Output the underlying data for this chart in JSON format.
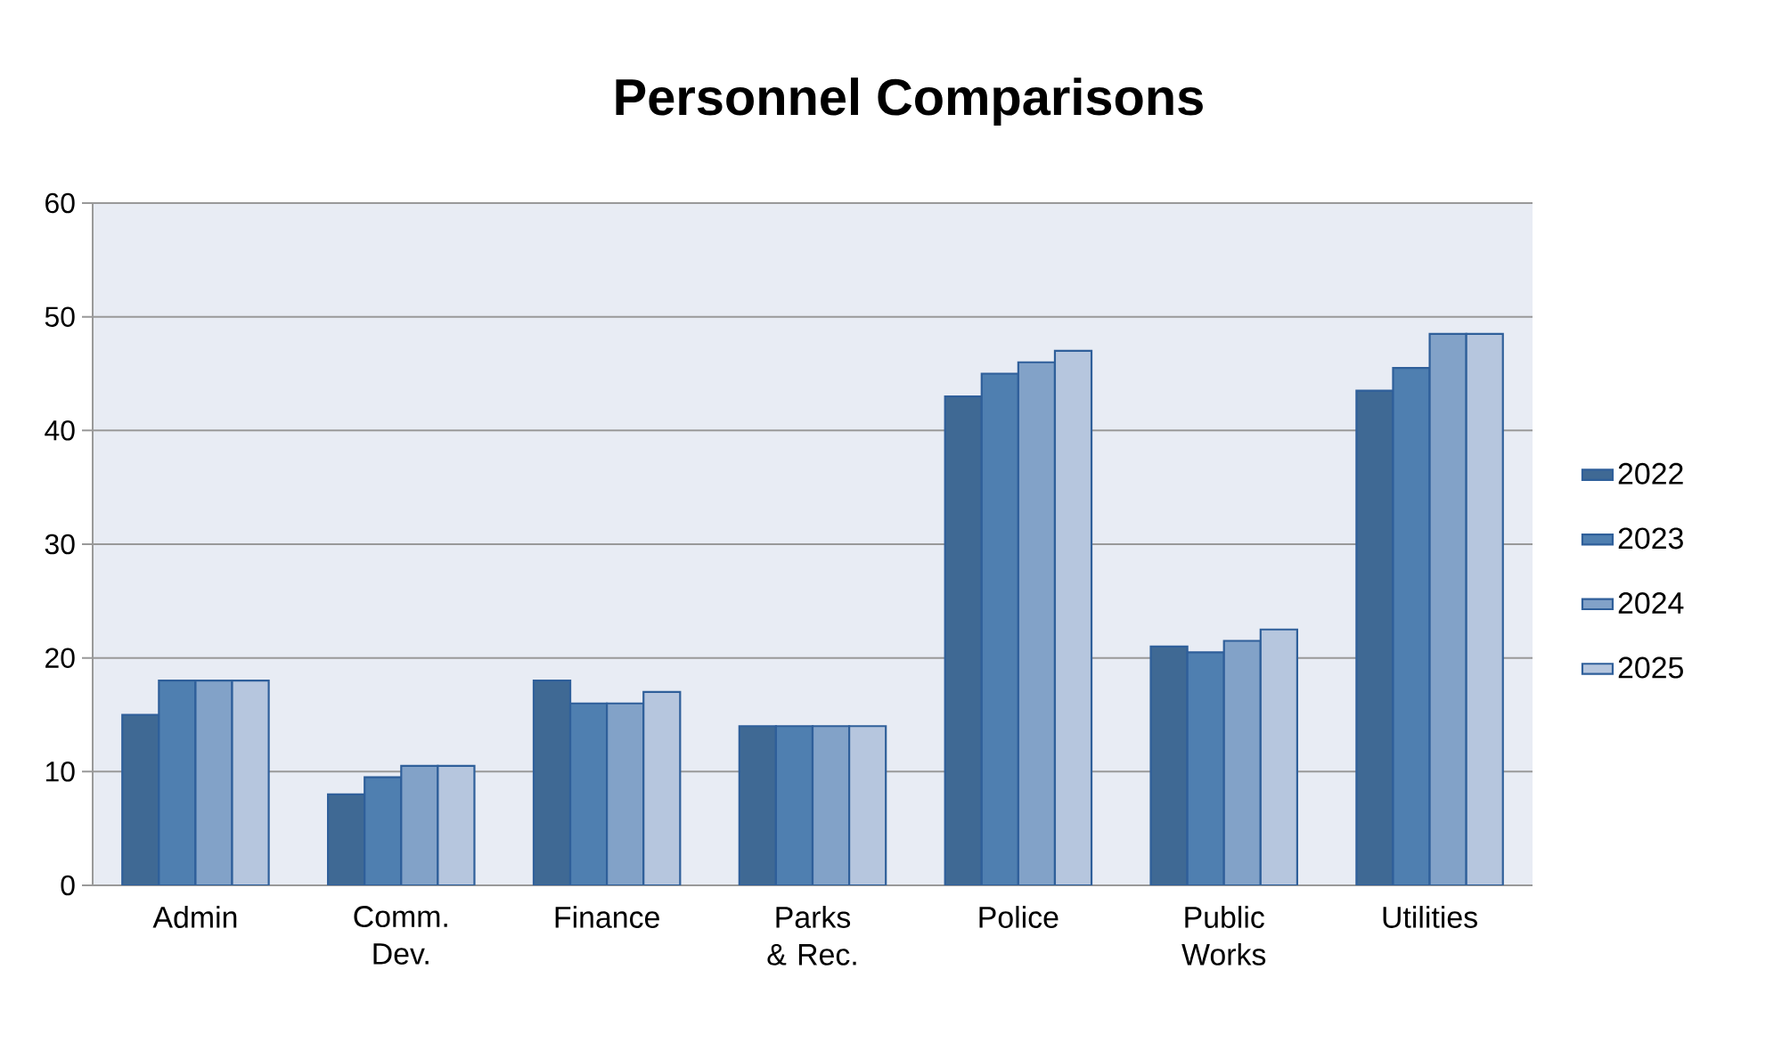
{
  "chart_data": {
    "type": "bar",
    "title": "Personnel Comparisons",
    "categories": [
      "Admin",
      "Comm. Dev.",
      "Finance",
      "Parks & Rec.",
      "Police",
      "Public Works",
      "Utilities"
    ],
    "series": [
      {
        "name": "2022",
        "color": "#3f6994",
        "values": [
          15,
          8,
          18,
          14,
          43,
          21,
          43.5
        ]
      },
      {
        "name": "2023",
        "color": "#4f7fb0",
        "values": [
          18,
          9.5,
          16,
          14,
          45,
          20.5,
          45.5
        ]
      },
      {
        "name": "2024",
        "color": "#82a2c8",
        "values": [
          18,
          10.5,
          16,
          14,
          46,
          21.5,
          48.5
        ]
      },
      {
        "name": "2025",
        "color": "#b6c6de",
        "values": [
          18,
          10.5,
          17,
          14,
          47,
          22.5,
          48.5
        ]
      }
    ],
    "ylim": [
      0,
      60
    ],
    "yticks": [
      0,
      10,
      20,
      30,
      40,
      50,
      60
    ],
    "grid": "y",
    "legend": "right"
  }
}
